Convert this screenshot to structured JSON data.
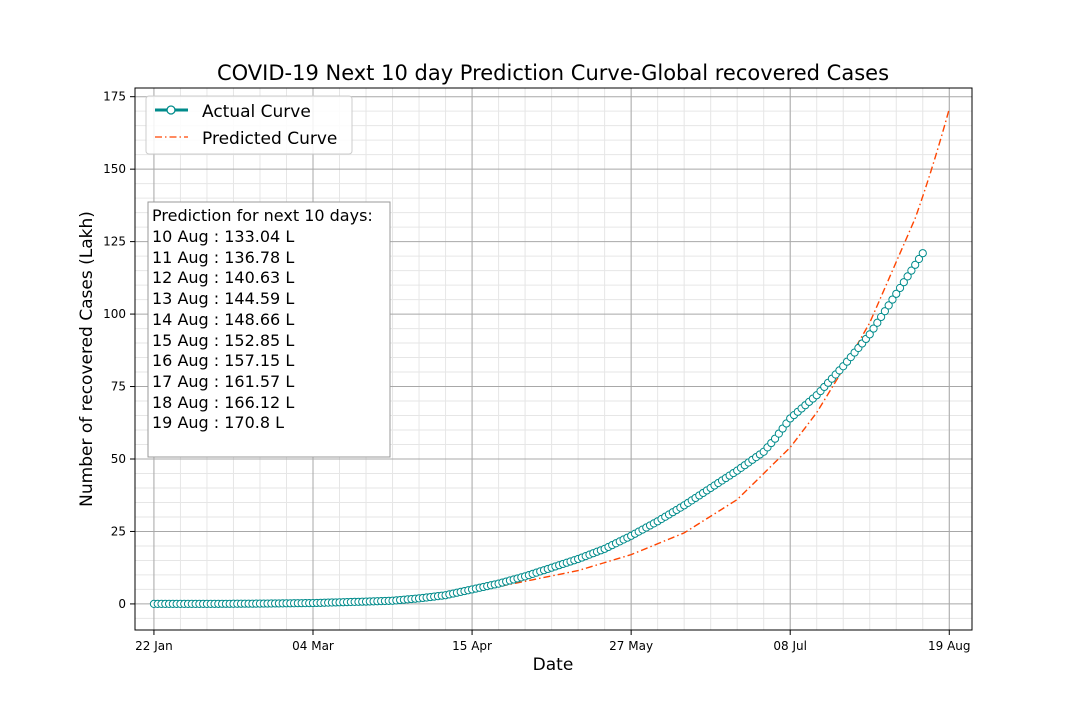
{
  "chart_data": {
    "type": "line",
    "title": "COVID-19 Next 10 day Prediction Curve-Global recovered Cases",
    "xlabel": "Date",
    "ylabel": "Number of recovered Cases (Lakh)",
    "x_start": "2020-01-22",
    "x_range": [
      "2020-01-17",
      "2020-08-25"
    ],
    "ylim": [
      -9,
      178
    ],
    "x_ticks": [
      {
        "label": "22 Jan",
        "date": "2020-01-22"
      },
      {
        "label": "04 Mar",
        "date": "2020-03-04"
      },
      {
        "label": "15 Apr",
        "date": "2020-04-15"
      },
      {
        "label": "27 May",
        "date": "2020-05-27"
      },
      {
        "label": "08 Jul",
        "date": "2020-07-08"
      },
      {
        "label": "19 Aug",
        "date": "2020-08-19"
      }
    ],
    "y_ticks": [
      0,
      25,
      50,
      75,
      100,
      125,
      150,
      175
    ],
    "grid": true,
    "legend_position": "top-left",
    "series": [
      {
        "name": "Actual Curve",
        "color": "#008b8b",
        "marker": "open-circle",
        "points": [
          [
            "2020-01-22",
            0.0
          ],
          [
            "2020-02-05",
            0.0
          ],
          [
            "2020-02-19",
            0.1
          ],
          [
            "2020-03-04",
            0.3
          ],
          [
            "2020-03-18",
            0.8
          ],
          [
            "2020-03-25",
            1.1
          ],
          [
            "2020-04-01",
            1.9
          ],
          [
            "2020-04-08",
            3.0
          ],
          [
            "2020-04-15",
            5.0
          ],
          [
            "2020-04-22",
            7.0
          ],
          [
            "2020-04-29",
            9.5
          ],
          [
            "2020-05-06",
            12.5
          ],
          [
            "2020-05-13",
            15.5
          ],
          [
            "2020-05-20",
            19.0
          ],
          [
            "2020-05-27",
            23.5
          ],
          [
            "2020-06-03",
            28.5
          ],
          [
            "2020-06-10",
            34.0
          ],
          [
            "2020-06-17",
            40.0
          ],
          [
            "2020-06-24",
            46.0
          ],
          [
            "2020-07-01",
            52.5
          ],
          [
            "2020-07-04",
            57.0
          ],
          [
            "2020-07-08",
            64.0
          ],
          [
            "2020-07-15",
            72.0
          ],
          [
            "2020-07-22",
            82.0
          ],
          [
            "2020-07-29",
            93.0
          ],
          [
            "2020-08-05",
            107.0
          ],
          [
            "2020-08-09",
            115.0
          ],
          [
            "2020-08-12",
            121.0
          ]
        ]
      },
      {
        "name": "Predicted Curve",
        "color": "#ff4500",
        "style": "dash-dot",
        "points": [
          [
            "2020-01-22",
            0.0
          ],
          [
            "2020-02-19",
            0.0
          ],
          [
            "2020-03-04",
            0.1
          ],
          [
            "2020-03-18",
            0.5
          ],
          [
            "2020-04-01",
            1.8
          ],
          [
            "2020-04-15",
            4.2
          ],
          [
            "2020-04-29",
            7.8
          ],
          [
            "2020-05-13",
            11.5
          ],
          [
            "2020-05-27",
            17.0
          ],
          [
            "2020-06-10",
            24.5
          ],
          [
            "2020-06-24",
            36.0
          ],
          [
            "2020-07-08",
            54.0
          ],
          [
            "2020-07-15",
            66.0
          ],
          [
            "2020-07-22",
            81.0
          ],
          [
            "2020-07-29",
            97.0
          ],
          [
            "2020-08-05",
            118.0
          ],
          [
            "2020-08-10",
            133.04
          ],
          [
            "2020-08-11",
            136.78
          ],
          [
            "2020-08-12",
            140.63
          ],
          [
            "2020-08-13",
            144.59
          ],
          [
            "2020-08-14",
            148.66
          ],
          [
            "2020-08-15",
            152.85
          ],
          [
            "2020-08-16",
            157.15
          ],
          [
            "2020-08-17",
            161.57
          ],
          [
            "2020-08-18",
            166.12
          ],
          [
            "2020-08-19",
            170.8
          ]
        ]
      }
    ],
    "annotation": {
      "heading": "Prediction for next 10 days:",
      "lines": [
        "10 Aug : 133.04 L",
        "11 Aug : 136.78 L",
        "12 Aug : 140.63 L",
        "13 Aug : 144.59 L",
        "14 Aug : 148.66 L",
        "15 Aug : 152.85 L",
        "16 Aug : 157.15 L",
        "17 Aug : 161.57 L",
        "18 Aug : 166.12 L",
        "19 Aug : 170.8 L"
      ]
    }
  }
}
